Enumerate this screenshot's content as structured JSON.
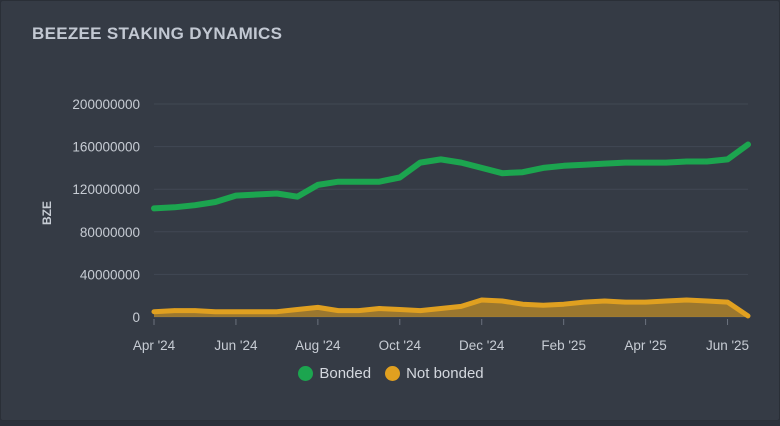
{
  "chart_data": {
    "type": "area",
    "title": "BEEZEE STAKING DYNAMICS",
    "ylabel": "BZE",
    "xlabel": "",
    "ylim": [
      0,
      200000000
    ],
    "yticks": [
      "0",
      "40000000",
      "80000000",
      "120000000",
      "160000000",
      "200000000"
    ],
    "xticks": [
      "Apr '24",
      "Jun '24",
      "Aug '24",
      "Oct '24",
      "Dec '24",
      "Feb '25",
      "Apr '25",
      "Jun '25"
    ],
    "x": [
      0,
      0.5,
      1,
      1.5,
      2,
      2.5,
      3,
      3.5,
      4,
      4.5,
      5,
      5.5,
      6,
      6.5,
      7,
      7.5,
      8,
      8.5,
      9,
      9.5,
      10,
      10.5,
      11,
      11.5,
      12,
      12.5,
      13,
      13.5,
      14,
      14.5
    ],
    "series": [
      {
        "name": "Bonded",
        "color": "#1ca54f",
        "values": [
          102000000,
          103000000,
          105000000,
          108000000,
          114000000,
          115000000,
          116000000,
          113000000,
          124000000,
          127000000,
          127000000,
          127000000,
          131000000,
          145000000,
          148000000,
          145000000,
          140000000,
          135000000,
          136000000,
          140000000,
          142000000,
          143000000,
          144000000,
          145000000,
          145000000,
          145000000,
          146000000,
          146000000,
          148000000,
          162000000
        ]
      },
      {
        "name": "Not bonded",
        "color": "#e0a020",
        "values": [
          5000000,
          6000000,
          6000000,
          5000000,
          5000000,
          5000000,
          5000000,
          7000000,
          9000000,
          6000000,
          6000000,
          8000000,
          7000000,
          6000000,
          8000000,
          10000000,
          16000000,
          15000000,
          12000000,
          11000000,
          12000000,
          14000000,
          15000000,
          14000000,
          14000000,
          15000000,
          16000000,
          15000000,
          14000000,
          1000000
        ]
      }
    ],
    "legend": "bottom-center"
  }
}
